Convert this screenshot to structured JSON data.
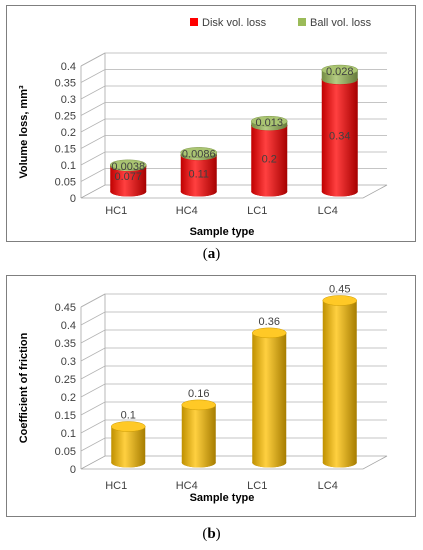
{
  "chart_data": [
    {
      "type": "bar",
      "stacked": true,
      "three_d": true,
      "categories": [
        "HC1",
        "HC4",
        "LC1",
        "LC4"
      ],
      "series": [
        {
          "name": "Disk vol. loss",
          "values": [
            0.077,
            0.11,
            0.2,
            0.34
          ],
          "labels": [
            "0.077",
            "0.11",
            "0.2",
            "0.34"
          ],
          "color": "#ff0000"
        },
        {
          "name": "Ball vol. loss",
          "values": [
            0.0038,
            0.0086,
            0.013,
            0.028
          ],
          "labels": [
            "0.0038",
            "0.0086",
            "0.013",
            "0.028"
          ],
          "color": "#9bbb59"
        }
      ],
      "xlabel": "Sample type",
      "ylabel": "Volume loss, mm³",
      "ylim": [
        0,
        0.4
      ],
      "yticks": [
        "0",
        "0.05",
        "0.1",
        "0.15",
        "0.2",
        "0.25",
        "0.3",
        "0.35",
        "0.4"
      ],
      "legend": "top",
      "grid": true
    },
    {
      "type": "bar",
      "three_d": true,
      "categories": [
        "HC1",
        "HC4",
        "LC1",
        "LC4"
      ],
      "series": [
        {
          "values": [
            0.1,
            0.16,
            0.36,
            0.45
          ],
          "labels": [
            "0.1",
            "0.16",
            "0.36",
            "0.45"
          ],
          "color": "#ffc000"
        }
      ],
      "xlabel": "Sample type",
      "ylabel": "Coefficient of friction",
      "ylim": [
        0,
        0.45
      ],
      "yticks": [
        "0",
        "0.05",
        "0.1",
        "0.15",
        "0.2",
        "0.25",
        "0.3",
        "0.35",
        "0.4",
        "0.45"
      ],
      "grid": true
    }
  ],
  "captions": {
    "a": {
      "open": "(",
      "letter": "a",
      "close": ")"
    },
    "b": {
      "open": "(",
      "letter": "b",
      "close": ")"
    }
  }
}
